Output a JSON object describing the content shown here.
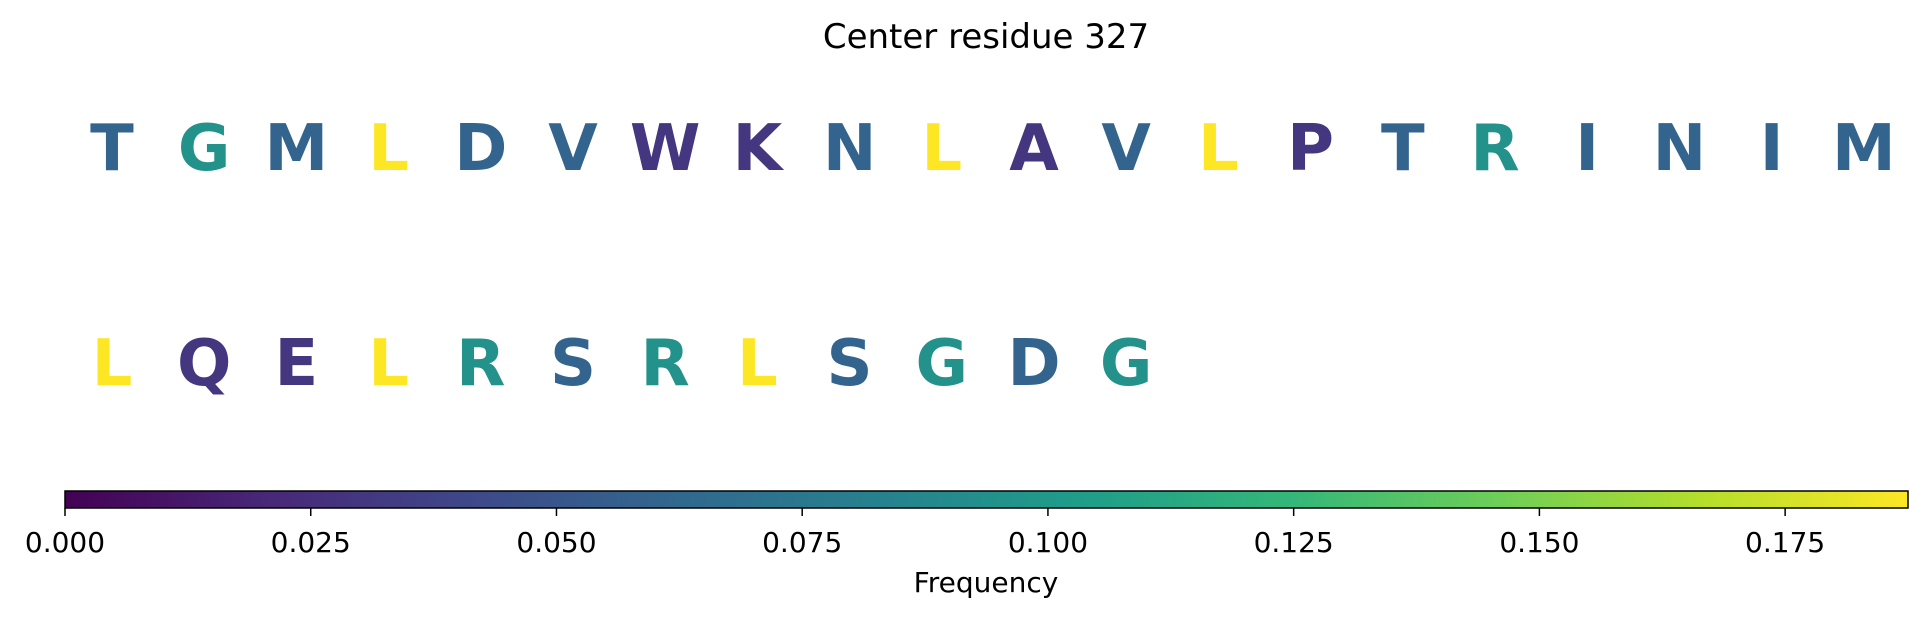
{
  "chart_data": {
    "type": "sequence_heatmap",
    "title": "Center residue 327",
    "residues": [
      {
        "letter": "T",
        "frequency": 0.06
      },
      {
        "letter": "G",
        "frequency": 0.095
      },
      {
        "letter": "M",
        "frequency": 0.06
      },
      {
        "letter": "L",
        "frequency": 0.188
      },
      {
        "letter": "D",
        "frequency": 0.06
      },
      {
        "letter": "V",
        "frequency": 0.06
      },
      {
        "letter": "W",
        "frequency": 0.03
      },
      {
        "letter": "K",
        "frequency": 0.03
      },
      {
        "letter": "N",
        "frequency": 0.06
      },
      {
        "letter": "L",
        "frequency": 0.188
      },
      {
        "letter": "A",
        "frequency": 0.03
      },
      {
        "letter": "V",
        "frequency": 0.06
      },
      {
        "letter": "L",
        "frequency": 0.188
      },
      {
        "letter": "P",
        "frequency": 0.03
      },
      {
        "letter": "T",
        "frequency": 0.06
      },
      {
        "letter": "R",
        "frequency": 0.095
      },
      {
        "letter": "I",
        "frequency": 0.06
      },
      {
        "letter": "N",
        "frequency": 0.06
      },
      {
        "letter": "I",
        "frequency": 0.06
      },
      {
        "letter": "M",
        "frequency": 0.06
      },
      {
        "letter": "L",
        "frequency": 0.188
      },
      {
        "letter": "Q",
        "frequency": 0.03
      },
      {
        "letter": "E",
        "frequency": 0.03
      },
      {
        "letter": "L",
        "frequency": 0.188
      },
      {
        "letter": "R",
        "frequency": 0.095
      },
      {
        "letter": "S",
        "frequency": 0.06
      },
      {
        "letter": "R",
        "frequency": 0.095
      },
      {
        "letter": "L",
        "frequency": 0.188
      },
      {
        "letter": "S",
        "frequency": 0.06
      },
      {
        "letter": "G",
        "frequency": 0.095
      },
      {
        "letter": "D",
        "frequency": 0.06
      },
      {
        "letter": "G",
        "frequency": 0.095
      }
    ],
    "letters_per_row": 20,
    "colorbar": {
      "label": "Frequency",
      "colormap": "viridis",
      "range": [
        0,
        0.1875
      ],
      "ticks": [
        0.0,
        0.025,
        0.05,
        0.075,
        0.1,
        0.125,
        0.15,
        0.175
      ],
      "tick_labels": [
        "0.000",
        "0.025",
        "0.050",
        "0.075",
        "0.100",
        "0.125",
        "0.150",
        "0.175"
      ],
      "orientation": "horizontal"
    }
  }
}
